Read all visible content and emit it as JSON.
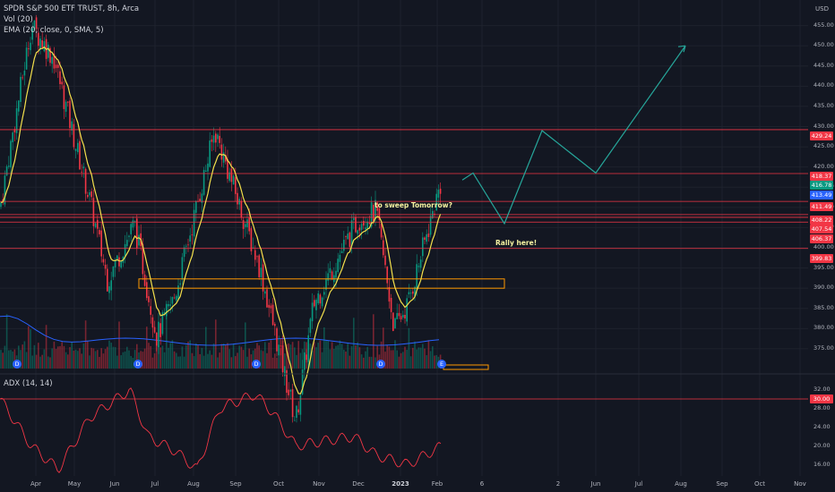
{
  "header": {
    "title": "SPDR S&P 500 ETF TRUST, 8h, Arca",
    "vol_label": "Vol (20)",
    "ema_label": "EMA (20, close, 0, SMA, 5)",
    "adx_label": "ADX (14, 14)",
    "currency": "USD"
  },
  "annotations": {
    "sweep_text": "to sweep Tomorrow?",
    "rally_text": "Rally here!"
  },
  "price_axis": {
    "ticks": [
      "455.00",
      "450.00",
      "445.00",
      "440.00",
      "435.00",
      "430.00",
      "425.00",
      "420.00",
      "415.00",
      "410.00",
      "405.00",
      "400.00",
      "395.00",
      "390.00",
      "385.00",
      "380.00",
      "375.00"
    ],
    "tags": [
      {
        "text": "429.24",
        "color": "#f23645"
      },
      {
        "text": "418.37",
        "color": "#f23645"
      },
      {
        "text": "416.78",
        "color": "#089981"
      },
      {
        "text": "413.49",
        "color": "#2962ff"
      },
      {
        "text": "411.49",
        "color": "#f23645"
      },
      {
        "text": "408.22",
        "color": "#f23645"
      },
      {
        "text": "407.54",
        "color": "#f23645"
      },
      {
        "text": "406.37",
        "color": "#f23645"
      },
      {
        "text": "399.83",
        "color": "#f23645"
      }
    ]
  },
  "adx_axis": {
    "ticks": [
      "32.00",
      "28.00",
      "24.00",
      "20.00",
      "16.00"
    ],
    "tag": {
      "text": "30.00",
      "color": "#f23645"
    }
  },
  "time_axis": {
    "labels": [
      "Apr",
      "May",
      "Jun",
      "Jul",
      "Aug",
      "Sep",
      "Oct",
      "Nov",
      "Dec",
      "2023",
      "Feb",
      "6",
      "2",
      "Jun",
      "Jul",
      "Aug",
      "Sep",
      "Oct",
      "Nov"
    ]
  },
  "event_markers": [
    "D",
    "D",
    "D",
    "D",
    "E"
  ],
  "colors": {
    "background": "#131722",
    "up": "#089981",
    "down": "#f23645",
    "ema": "#f3e04c",
    "projection": "#26a69a",
    "level": "#f23645",
    "adx": "#f23645",
    "zone": "#ff9800"
  },
  "chart_data": {
    "type": "candlestick",
    "ylim": [
      371,
      460
    ],
    "levels": [
      429.24,
      418.37,
      411.49,
      408.22,
      407.54,
      406.37,
      399.83
    ],
    "zone": {
      "from": 390,
      "to": 392.3
    },
    "close_path": [
      {
        "x": "Mar",
        "y": 410
      },
      {
        "x": "Apr",
        "y": 455
      },
      {
        "x": "Apr",
        "y": 447
      },
      {
        "x": "May",
        "y": 412
      },
      {
        "x": "May",
        "y": 392
      },
      {
        "x": "Jun",
        "y": 406
      },
      {
        "x": "Jun",
        "y": 378
      },
      {
        "x": "Jul",
        "y": 388
      },
      {
        "x": "Aug",
        "y": 429
      },
      {
        "x": "Sep",
        "y": 395
      },
      {
        "x": "Oct",
        "y": 357
      },
      {
        "x": "Oct",
        "y": 386
      },
      {
        "x": "Nov",
        "y": 407
      },
      {
        "x": "Dec",
        "y": 409
      },
      {
        "x": "Dec",
        "y": 380
      },
      {
        "x": "2023",
        "y": 386
      },
      {
        "x": "Feb",
        "y": 416.78
      }
    ],
    "projection": [
      416.78,
      418.5,
      406,
      429,
      418.5,
      450
    ],
    "adx": [
      30,
      20,
      15,
      26,
      32,
      22,
      19,
      15,
      28,
      31,
      27,
      20,
      21,
      22,
      18,
      16,
      20
    ],
    "adx_ylim": [
      14,
      34
    ]
  }
}
